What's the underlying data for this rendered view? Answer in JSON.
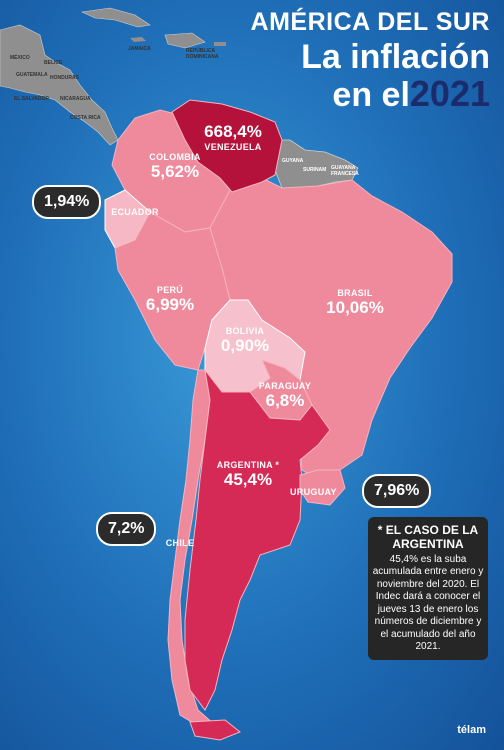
{
  "header": {
    "region": "AMÉRICA DEL SUR",
    "line1": "La inflación",
    "line2": "en el",
    "year": "2021"
  },
  "countries": {
    "venezuela": {
      "name": "VENEZUELA",
      "value": "668,4%"
    },
    "colombia": {
      "name": "COLOMBIA",
      "value": "5,62%"
    },
    "ecuador": {
      "name": "ECUADOR",
      "value": "1,94%"
    },
    "peru": {
      "name": "PERÚ",
      "value": "6,99%"
    },
    "brasil": {
      "name": "BRASIL",
      "value": "10,06%"
    },
    "bolivia": {
      "name": "BOLIVIA",
      "value": "0,90%"
    },
    "paraguay": {
      "name": "PARAGUAY",
      "value": "6,8%"
    },
    "argentina": {
      "name": "ARGENTINA *",
      "value": "45,4%"
    },
    "uruguay": {
      "name": "URUGUAY",
      "value": "7,96%"
    },
    "chile": {
      "name": "CHILE",
      "value": "7,2%"
    }
  },
  "other_labels": {
    "guyana": "GUYANA",
    "surinam": "SURINAM",
    "guayana": "GUAYANA FRANCESA",
    "mexico": "MÉXICO",
    "belice": "BELICE",
    "guatemala": "GUATEMALA",
    "honduras": "HONDURAS",
    "salvador": "EL SALVADOR",
    "nicaragua": "NICARAGUA",
    "costa_rica": "COSTA RICA",
    "jamaica": "JAMAICA",
    "dominicana": "REPÚBLICA DOMINICANA"
  },
  "note": {
    "heading": "* EL CASO DE LA ARGENTINA",
    "body": "45,4% es la suba acumulada entre enero y noviembre del 2020. El Indec dará a conocer el jueves 13 de enero los números de diciembre y el acumulado del año 2021."
  },
  "logo": "télam",
  "colors": {
    "ocean": "#1f6fb8",
    "land_gray": "#8f8f8f",
    "light_pink": "#ef8a9c",
    "medium_pink": "#e6647e",
    "argentina": "#d42a55",
    "venezuela": "#b4123a",
    "bolivia": "#f6c0cc",
    "callout": "#2b2b2b"
  }
}
